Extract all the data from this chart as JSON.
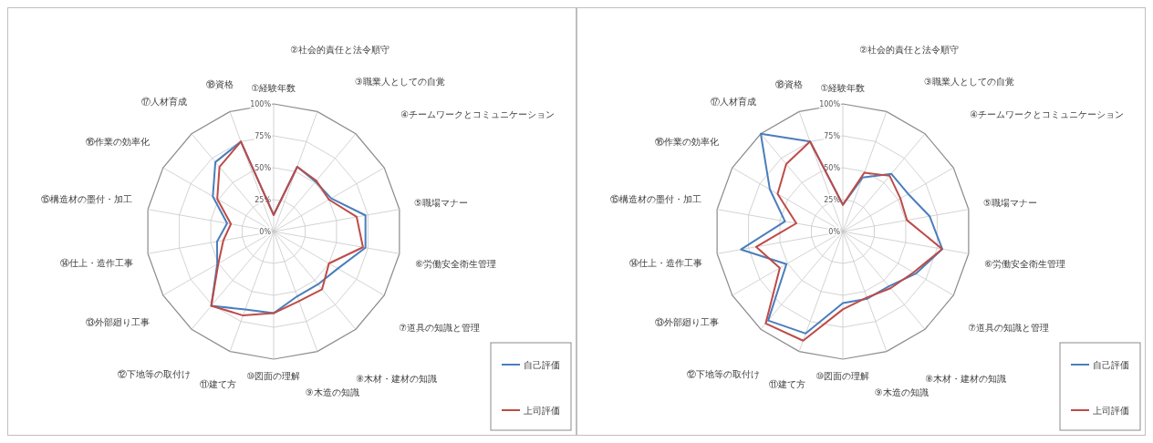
{
  "chart_data": [
    {
      "type": "radar",
      "categories": [
        "①経験年数",
        "②社会的責任と法令順守",
        "③職業人としての自覚",
        "④チームワークとコミュニケーション",
        "⑤職場マナー",
        "⑥労働安全衛生管理",
        "⑦道具の知識と管理",
        "⑧木材・建材の知識",
        "⑨木造の知識",
        "⑩図面の理解",
        "⑪建て方",
        "⑫下地等の取付け",
        "⑬外部廻り工事",
        "⑭仕上・造作工事",
        "⑮構造材の墨付・加工",
        "⑯作業の効率化",
        "⑰人材育成",
        "⑱資格"
      ],
      "series": [
        {
          "name": "自己評価",
          "color": "#4a7ebb",
          "values": [
            13,
            54,
            51,
            52,
            73,
            73,
            58,
            54,
            54,
            64,
            65,
            76,
            51,
            45,
            37,
            55,
            71,
            75
          ]
        },
        {
          "name": "上司評価",
          "color": "#be4b48",
          "values": [
            13,
            54,
            52,
            50,
            66,
            71,
            50,
            59,
            58,
            64,
            70,
            76,
            50,
            40,
            34,
            51,
            66,
            75
          ]
        }
      ],
      "ylim": [
        0,
        100
      ],
      "yticks": [
        {
          "value": 0,
          "label": "0%"
        },
        {
          "value": 25,
          "label": "25%"
        },
        {
          "value": 50,
          "label": "50%"
        },
        {
          "value": 75,
          "label": "75%"
        },
        {
          "value": 100,
          "label": "100%"
        }
      ],
      "grid": true,
      "legend": "bottom right",
      "marker": "none",
      "line_style": "solid"
    },
    {
      "type": "radar",
      "categories": [
        "①経験年数",
        "②社会的責任と法令順守",
        "③職業人としての自覚",
        "④チームワークとコミュニケーション",
        "⑤職場マナー",
        "⑥労働安全衛生管理",
        "⑦道具の知識と管理",
        "⑧木材・建材の知識",
        "⑨木造の知識",
        "⑩図面の理解",
        "⑪建て方",
        "⑫下地等の取付け",
        "⑬外部廻り工事",
        "⑭仕上・造作工事",
        "⑮構造材の墨付・加工",
        "⑯作業の効率化",
        "⑰人材育成",
        "⑱資格"
      ],
      "series": [
        {
          "name": "自己評価",
          "color": "#4a7ebb",
          "values": [
            21,
            45,
            59,
            59,
            69,
            79,
            66,
            56,
            56,
            56,
            85,
            91,
            51,
            81,
            46,
            66,
            100,
            75
          ]
        },
        {
          "name": "上司評価",
          "color": "#be4b48",
          "values": [
            21,
            49,
            57,
            52,
            51,
            79,
            64,
            58,
            55,
            61,
            91,
            94,
            57,
            69,
            37,
            59,
            69,
            75
          ]
        }
      ],
      "ylim": [
        0,
        100
      ],
      "yticks": [
        {
          "value": 0,
          "label": "0%"
        },
        {
          "value": 25,
          "label": "25%"
        },
        {
          "value": 50,
          "label": "50%"
        },
        {
          "value": 75,
          "label": "75%"
        },
        {
          "value": 100,
          "label": "100%"
        }
      ],
      "grid": true,
      "legend": "bottom right",
      "marker": "none",
      "line_style": "solid"
    }
  ]
}
